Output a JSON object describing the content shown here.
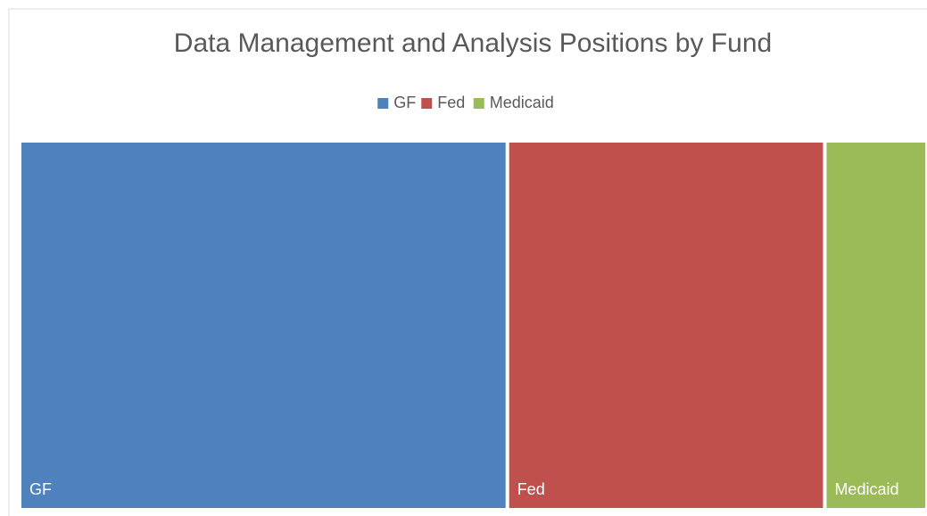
{
  "chart_data": {
    "type": "treemap",
    "title": "Data Management and Analysis Positions by Fund",
    "categories": [
      "GF",
      "Fed",
      "Medicaid"
    ],
    "values": [
      54,
      35,
      11
    ],
    "colors": [
      "#4f81bd",
      "#c0504d",
      "#9bbb59"
    ],
    "legend": "top"
  }
}
